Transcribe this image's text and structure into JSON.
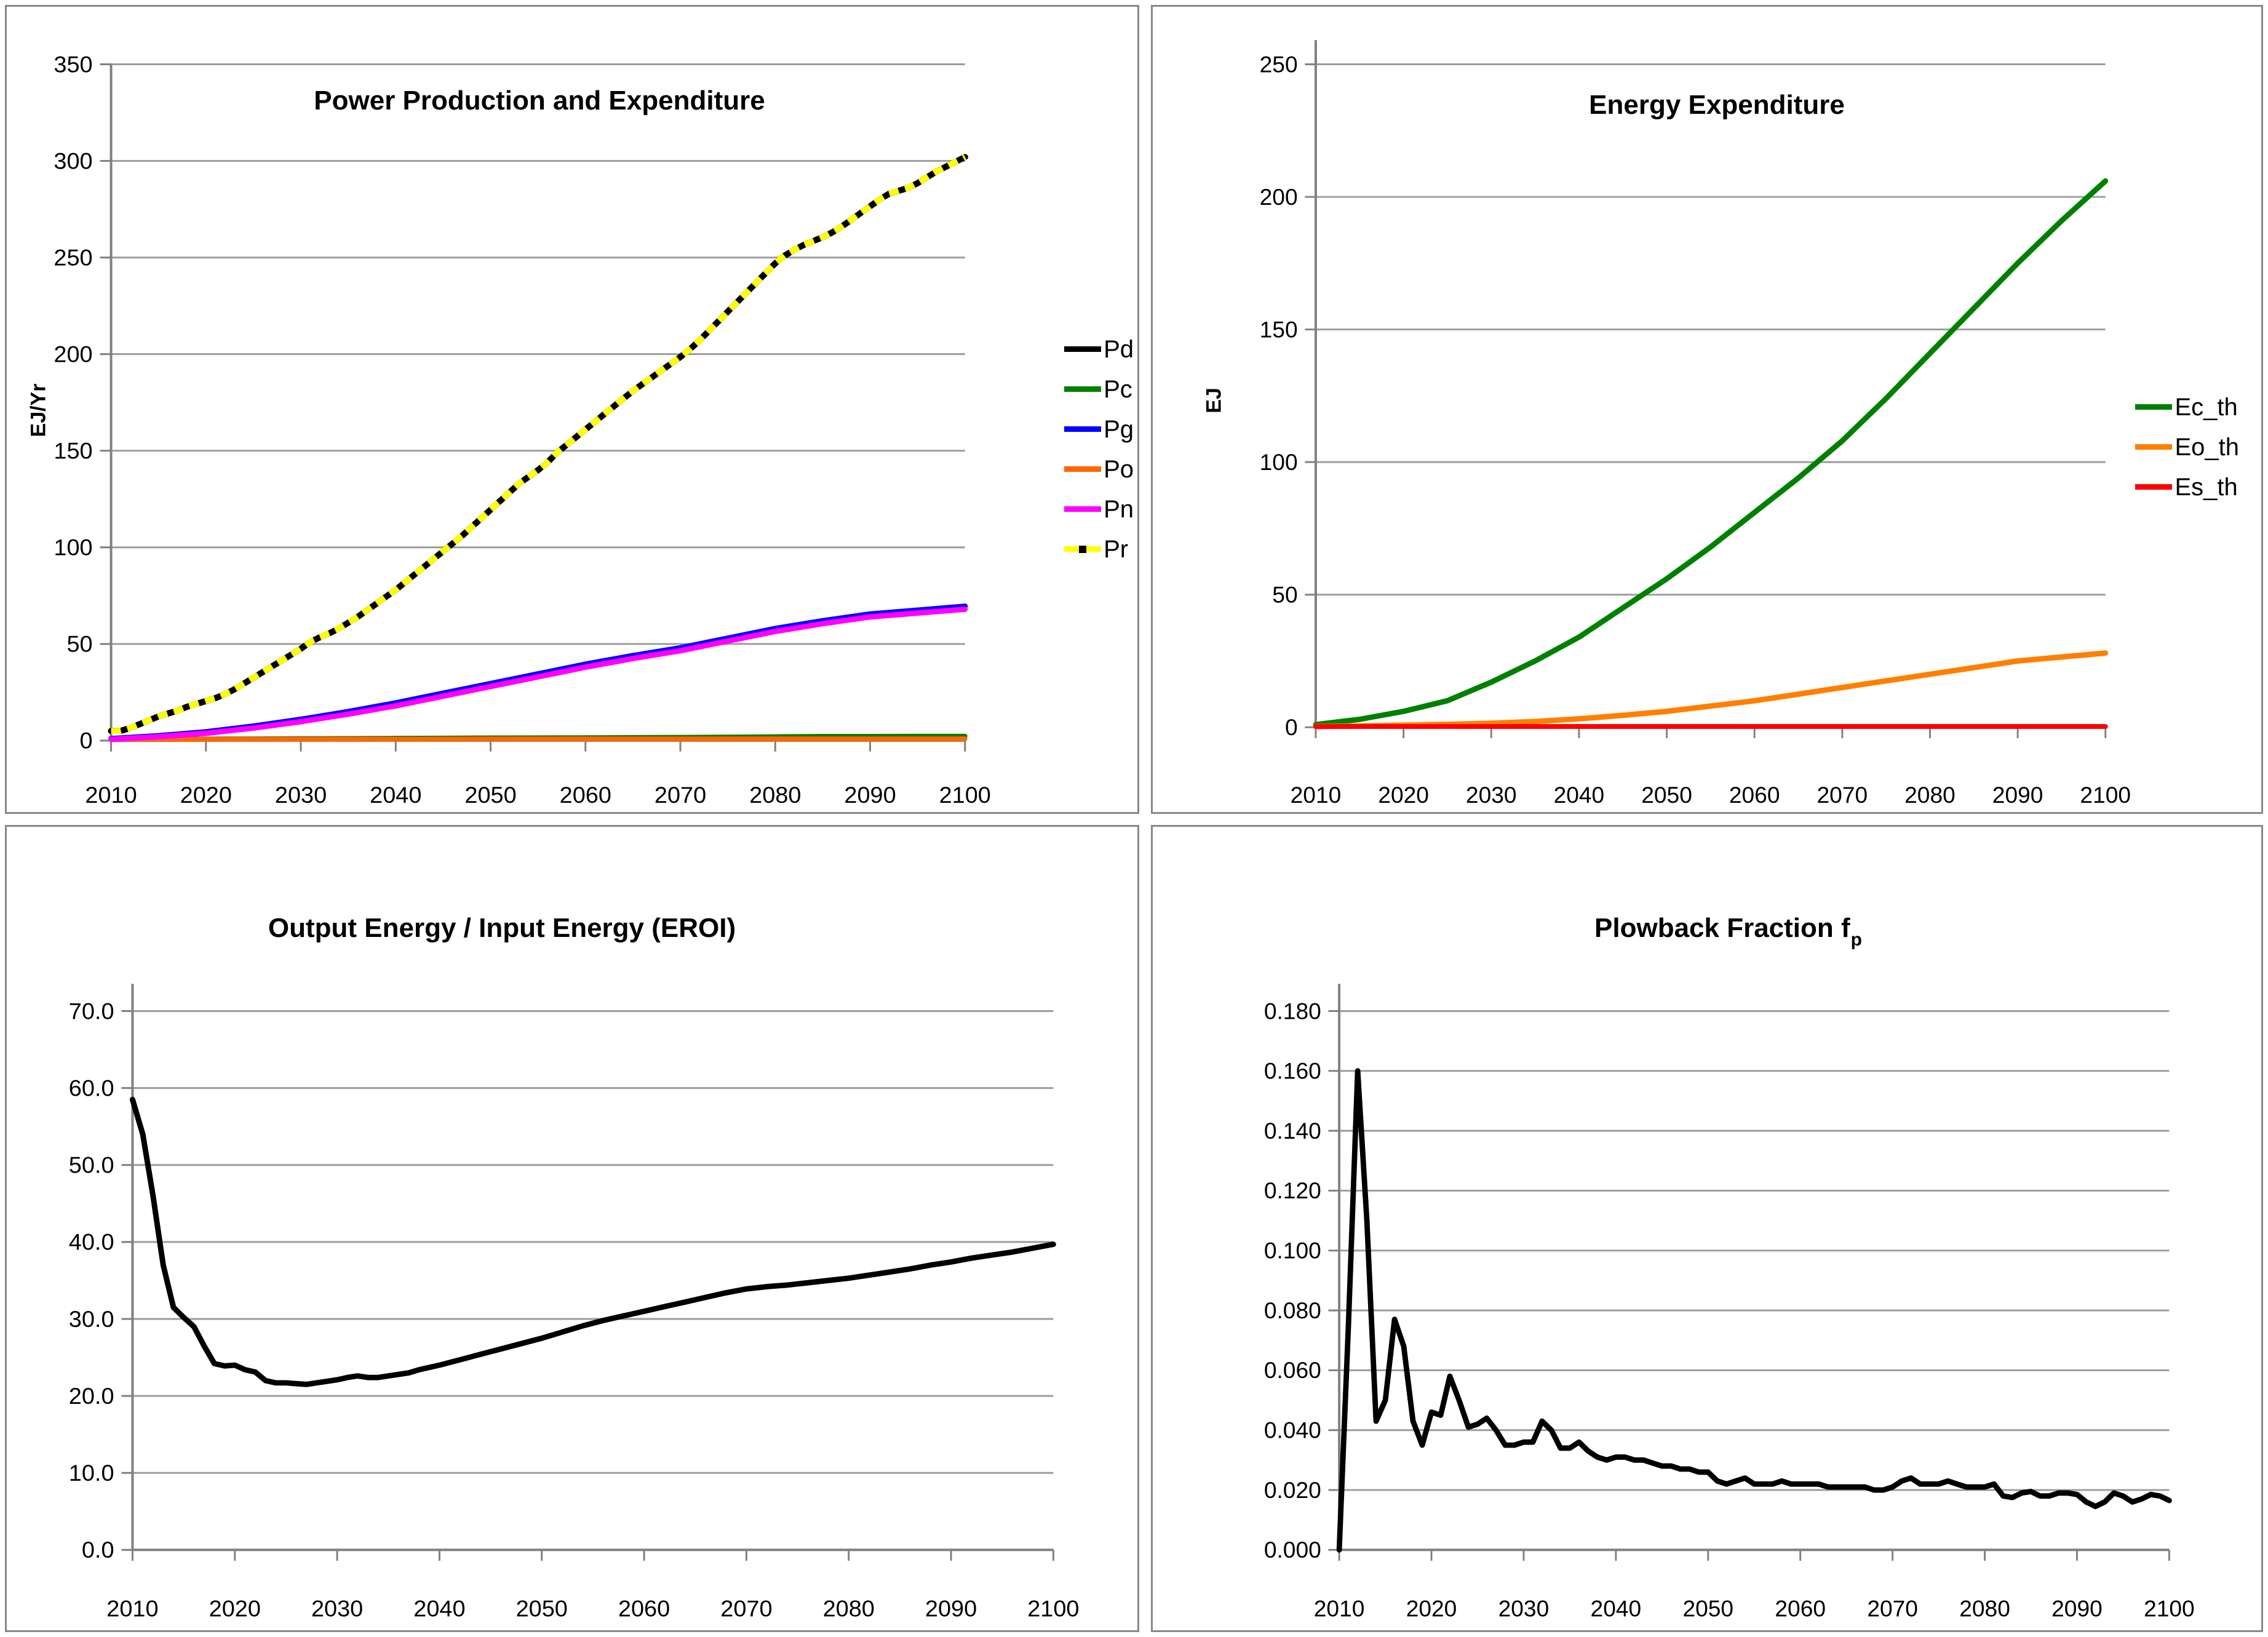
{
  "style": {
    "background": "#FFFFFF",
    "panel_border_color": "#898989",
    "grid_color": "#9C9C9C",
    "axis_color": "#808080",
    "text_color": "#000000"
  },
  "chart_data": [
    {
      "type": "line",
      "title": "Power Production and Expenditure",
      "xlabel": "",
      "ylabel": "EJ/Yr",
      "xlim": [
        2010,
        2100
      ],
      "ylim": [
        0,
        350
      ],
      "grid": true,
      "legend_position": "right",
      "x_ticks": [
        2010,
        2020,
        2030,
        2040,
        2050,
        2060,
        2070,
        2080,
        2090,
        2100
      ],
      "x_tick_labels": [
        "2010",
        "2020",
        "2030",
        "2040",
        "2050",
        "2060",
        "2070",
        "2080",
        "2090",
        "2100"
      ],
      "y_ticks": [
        0,
        50,
        100,
        150,
        200,
        250,
        300,
        350
      ],
      "y_tick_labels": [
        "0",
        "50",
        "100",
        "150",
        "200",
        "250",
        "300",
        "350"
      ],
      "series": [
        {
          "name": "Pd",
          "color": "#000000",
          "style": "solid",
          "width": 10,
          "x_start": 2010,
          "x_step": 1,
          "y": [
            5,
            5,
            6.5,
            8.5,
            10.5,
            12.5,
            14,
            15.5,
            17.5,
            19,
            20.5,
            22,
            24,
            26.5,
            29.5,
            32.5,
            35.5,
            38.5,
            41.5,
            44.5,
            47.5,
            51,
            53.5,
            55.5,
            58,
            61,
            64,
            67.5,
            71,
            74.5,
            78,
            82,
            86,
            90,
            94,
            98,
            102,
            106,
            110.5,
            115,
            119.5,
            124,
            128.5,
            133,
            136.5,
            140,
            144,
            149,
            153,
            157,
            161,
            165,
            169,
            173,
            177,
            181,
            184.5,
            188,
            191.5,
            195,
            198.5,
            202.5,
            207,
            212,
            217,
            222,
            227,
            232,
            237,
            242,
            247,
            251,
            254,
            256.5,
            258.5,
            260.5,
            263,
            266,
            269.5,
            273,
            276.5,
            280,
            283,
            284.5,
            286,
            288.5,
            291.5,
            294.5,
            297,
            299.5,
            302
          ]
        },
        {
          "name": "Pc",
          "color": "#008000",
          "style": "solid",
          "width": 8,
          "x": [
            2010,
            2015,
            2020,
            2025,
            2030,
            2035,
            2040,
            2045,
            2050,
            2055,
            2060,
            2065,
            2070,
            2075,
            2080,
            2085,
            2090,
            2095,
            2100
          ],
          "y": [
            0.5,
            0.6,
            0.8,
            0.9,
            1,
            1.1,
            1.2,
            1.3,
            1.4,
            1.45,
            1.5,
            1.6,
            1.7,
            1.85,
            2,
            2.2,
            2.2,
            2.3,
            2.3
          ]
        },
        {
          "name": "Pg",
          "color": "#0000FF",
          "style": "solid",
          "width": 9,
          "x": [
            2010,
            2015,
            2020,
            2025,
            2030,
            2035,
            2040,
            2045,
            2050,
            2055,
            2060,
            2065,
            2070,
            2075,
            2080,
            2085,
            2090,
            2095,
            2100
          ],
          "y": [
            1,
            2.5,
            4.5,
            7.5,
            11,
            15,
            19.5,
            24.5,
            29.5,
            34.5,
            39.5,
            44,
            48,
            53,
            58,
            62,
            65.5,
            67.5,
            69.5
          ]
        },
        {
          "name": "Po",
          "color": "#FF6600",
          "style": "solid",
          "width": 8,
          "x": [
            2010,
            2015,
            2020,
            2025,
            2030,
            2035,
            2040,
            2045,
            2050,
            2055,
            2060,
            2065,
            2070,
            2075,
            2080,
            2085,
            2090,
            2095,
            2100
          ],
          "y": [
            0.6,
            0.62,
            0.65,
            0.68,
            0.7,
            0.72,
            0.75,
            0.77,
            0.8,
            0.82,
            0.84,
            0.85,
            0.86,
            0.87,
            0.88,
            0.89,
            0.9,
            0.9,
            0.9
          ]
        },
        {
          "name": "Pn",
          "color": "#FF00FF",
          "style": "solid",
          "width": 9,
          "x": [
            2010,
            2015,
            2020,
            2025,
            2030,
            2035,
            2040,
            2045,
            2050,
            2055,
            2060,
            2065,
            2070,
            2075,
            2080,
            2085,
            2090,
            2095,
            2100
          ],
          "y": [
            0.7,
            2,
            3.8,
            6.5,
            9.8,
            13.7,
            18,
            23,
            28,
            33,
            38,
            42.5,
            46.5,
            51.5,
            56.5,
            60.5,
            64,
            66,
            68
          ]
        },
        {
          "name": "Pr",
          "color": "#FFFF00",
          "style": "dash_over_black",
          "base_color": "#000000",
          "marker_color": "#000000",
          "width": 10,
          "x_start": 2010,
          "x_step": 1,
          "y": [
            5,
            5,
            6.5,
            8.5,
            10.5,
            12.5,
            14,
            15.5,
            17.5,
            19,
            20.5,
            22,
            24,
            26.5,
            29.5,
            32.5,
            35.5,
            38.5,
            41.5,
            44.5,
            47.5,
            51,
            53.5,
            55.5,
            58,
            61,
            64,
            67.5,
            71,
            74.5,
            78,
            82,
            86,
            90,
            94,
            98,
            102,
            106,
            110.5,
            115,
            119.5,
            124,
            128.5,
            133,
            136.5,
            140,
            144,
            149,
            153,
            157,
            161,
            165,
            169,
            173,
            177,
            181,
            184.5,
            188,
            191.5,
            195,
            198.5,
            202.5,
            207,
            212,
            217,
            222,
            227,
            232,
            237,
            242,
            247,
            251,
            254,
            256.5,
            258.5,
            260.5,
            263,
            266,
            269.5,
            273,
            276.5,
            280,
            283,
            284.5,
            286,
            288.5,
            291.5,
            294.5,
            297,
            299.5,
            302
          ]
        }
      ]
    },
    {
      "type": "line",
      "title": "Energy Expenditure",
      "xlabel": "",
      "ylabel": "EJ",
      "xlim": [
        2010,
        2100
      ],
      "ylim": [
        0,
        250
      ],
      "grid": true,
      "legend_position": "right",
      "x_ticks": [
        2010,
        2020,
        2030,
        2040,
        2050,
        2060,
        2070,
        2080,
        2090,
        2100
      ],
      "x_tick_labels": [
        "2010",
        "2020",
        "2030",
        "2040",
        "2050",
        "2060",
        "2070",
        "2080",
        "2090",
        "2100"
      ],
      "y_ticks": [
        0,
        50,
        100,
        150,
        200,
        250
      ],
      "y_tick_labels": [
        "0",
        "50",
        "100",
        "150",
        "200",
        "250"
      ],
      "series": [
        {
          "name": "Ec_th",
          "color": "#008000",
          "style": "solid",
          "width": 9,
          "x": [
            2010,
            2015,
            2020,
            2025,
            2030,
            2035,
            2040,
            2045,
            2050,
            2055,
            2060,
            2065,
            2070,
            2075,
            2080,
            2085,
            2090,
            2095,
            2100
          ],
          "y": [
            1,
            3,
            6,
            10,
            17,
            25,
            34,
            45,
            56,
            68,
            81,
            94,
            108,
            124,
            141,
            158,
            175,
            191,
            206
          ]
        },
        {
          "name": "Eo_th",
          "color": "#FF7F00",
          "style": "solid",
          "width": 9,
          "x": [
            2010,
            2015,
            2020,
            2025,
            2030,
            2035,
            2040,
            2045,
            2050,
            2055,
            2060,
            2065,
            2070,
            2075,
            2080,
            2085,
            2090,
            2095,
            2100
          ],
          "y": [
            0.3,
            0.5,
            0.8,
            1.1,
            1.5,
            2.2,
            3.2,
            4.5,
            6,
            8,
            10,
            12.5,
            15,
            17.5,
            20,
            22.5,
            25,
            26.5,
            28
          ]
        },
        {
          "name": "Es_th",
          "color": "#FF0000",
          "style": "solid",
          "width": 8,
          "x": [
            2010,
            2100
          ],
          "y": [
            0.3,
            0.3
          ]
        }
      ]
    },
    {
      "type": "line",
      "title": "Output Energy / Input Energy (EROI)",
      "xlabel": "",
      "ylabel": "",
      "xlim": [
        2010,
        2100
      ],
      "ylim": [
        0,
        70
      ],
      "grid": true,
      "legend_position": "none",
      "x_ticks": [
        2010,
        2020,
        2030,
        2040,
        2050,
        2060,
        2070,
        2080,
        2090,
        2100
      ],
      "x_tick_labels": [
        "2010",
        "2020",
        "2030",
        "2040",
        "2050",
        "2060",
        "2070",
        "2080",
        "2090",
        "2100"
      ],
      "y_ticks": [
        0,
        10,
        20,
        30,
        40,
        50,
        60,
        70
      ],
      "y_tick_labels": [
        "0.0",
        "10.0",
        "20.0",
        "30.0",
        "40.0",
        "50.0",
        "60.0",
        "70.0"
      ],
      "series": [
        {
          "name": "EROI",
          "color": "#000000",
          "style": "solid",
          "width": 9,
          "x": [
            2010,
            2011,
            2012,
            2013,
            2014,
            2015,
            2016,
            2017,
            2018,
            2019,
            2020,
            2021,
            2022,
            2023,
            2024,
            2025,
            2026,
            2027,
            2028,
            2029,
            2030,
            2031,
            2032,
            2033,
            2034,
            2035,
            2036,
            2037,
            2038,
            2039,
            2040,
            2042,
            2044,
            2046,
            2048,
            2050,
            2052,
            2054,
            2056,
            2058,
            2060,
            2062,
            2064,
            2066,
            2068,
            2070,
            2072,
            2074,
            2076,
            2078,
            2080,
            2082,
            2084,
            2086,
            2088,
            2090,
            2092,
            2094,
            2096,
            2098,
            2100
          ],
          "y": [
            58.5,
            54,
            46,
            37,
            31.5,
            30.2,
            29,
            26.5,
            24.2,
            23.9,
            24,
            23.4,
            23.1,
            22,
            21.7,
            21.7,
            21.6,
            21.5,
            21.7,
            21.9,
            22.1,
            22.4,
            22.6,
            22.4,
            22.4,
            22.6,
            22.8,
            23,
            23.4,
            23.7,
            24,
            24.7,
            25.4,
            26.1,
            26.8,
            27.5,
            28.3,
            29.1,
            29.8,
            30.4,
            31,
            31.6,
            32.2,
            32.8,
            33.4,
            33.9,
            34.2,
            34.4,
            34.7,
            35,
            35.3,
            35.7,
            36.1,
            36.5,
            37,
            37.4,
            37.9,
            38.3,
            38.7,
            39.2,
            39.7
          ]
        }
      ]
    },
    {
      "type": "line",
      "title": "Plowback Fraction f_p",
      "title_main": "Plowback Fraction f",
      "title_sub": "p",
      "xlabel": "",
      "ylabel": "",
      "xlim": [
        2010,
        2100
      ],
      "ylim": [
        0,
        0.18
      ],
      "grid": true,
      "legend_position": "none",
      "x_ticks": [
        2010,
        2020,
        2030,
        2040,
        2050,
        2060,
        2070,
        2080,
        2090,
        2100
      ],
      "x_tick_labels": [
        "2010",
        "2020",
        "2030",
        "2040",
        "2050",
        "2060",
        "2070",
        "2080",
        "2090",
        "2100"
      ],
      "y_ticks": [
        0,
        0.02,
        0.04,
        0.06,
        0.08,
        0.1,
        0.12,
        0.14,
        0.16,
        0.18
      ],
      "y_tick_labels": [
        "0.000",
        "0.020",
        "0.040",
        "0.060",
        "0.080",
        "0.100",
        "0.120",
        "0.140",
        "0.160",
        "0.180"
      ],
      "series": [
        {
          "name": "fp",
          "color": "#000000",
          "style": "solid",
          "width": 9,
          "x_start": 2010,
          "x_step": 1,
          "y": [
            0,
            0.075,
            0.16,
            0.11,
            0.043,
            0.05,
            0.077,
            0.068,
            0.043,
            0.035,
            0.046,
            0.045,
            0.058,
            0.05,
            0.041,
            0.042,
            0.044,
            0.04,
            0.035,
            0.035,
            0.036,
            0.036,
            0.043,
            0.04,
            0.034,
            0.034,
            0.036,
            0.033,
            0.031,
            0.03,
            0.031,
            0.031,
            0.03,
            0.03,
            0.029,
            0.028,
            0.028,
            0.027,
            0.027,
            0.026,
            0.026,
            0.023,
            0.022,
            0.023,
            0.024,
            0.022,
            0.022,
            0.022,
            0.023,
            0.022,
            0.022,
            0.022,
            0.022,
            0.021,
            0.021,
            0.021,
            0.021,
            0.021,
            0.02,
            0.02,
            0.021,
            0.023,
            0.024,
            0.022,
            0.022,
            0.022,
            0.023,
            0.022,
            0.021,
            0.021,
            0.021,
            0.022,
            0.018,
            0.0175,
            0.019,
            0.0195,
            0.018,
            0.018,
            0.019,
            0.019,
            0.0185,
            0.016,
            0.0145,
            0.016,
            0.019,
            0.018,
            0.016,
            0.017,
            0.0185,
            0.018,
            0.0165
          ]
        }
      ]
    }
  ]
}
